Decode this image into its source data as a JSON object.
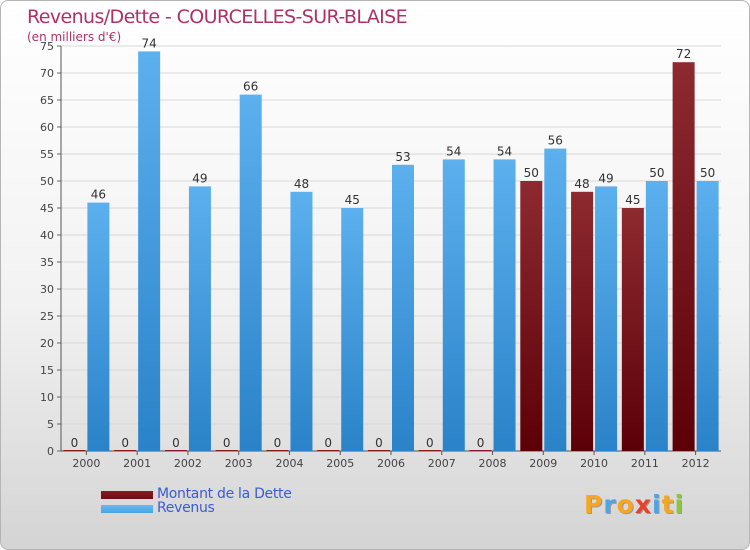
{
  "title": "Revenus/Dette - COURCELLES-SUR-BLAISE",
  "subtitle": "(en milliers d'€)",
  "colors": {
    "dette": "#7a1018",
    "revenus": "#4ba3e6",
    "title": "#b0306a",
    "legend_text": "#3c5bd6"
  },
  "legend": [
    {
      "label": "Montant de la Dette",
      "color": "#6b0d14"
    },
    {
      "label": "Revenus",
      "color": "#4ba3e6"
    }
  ],
  "logo": {
    "letters": [
      "P",
      "r",
      "o",
      "x",
      "i",
      "t",
      "i"
    ],
    "colors": [
      "#f5a623",
      "#4aa6e8",
      "#f5a623",
      "#e8402a",
      "#4aa6e8",
      "#f5a623",
      "#8cc63f"
    ]
  },
  "chart_data": {
    "type": "bar",
    "categories": [
      "2000",
      "2001",
      "2002",
      "2003",
      "2004",
      "2005",
      "2006",
      "2007",
      "2008",
      "2009",
      "2010",
      "2011",
      "2012"
    ],
    "series": [
      {
        "name": "Montant de la Dette",
        "values": [
          0,
          0,
          0,
          0,
          0,
          0,
          0,
          0,
          0,
          50,
          48,
          45,
          72
        ]
      },
      {
        "name": "Revenus",
        "values": [
          46,
          74,
          49,
          66,
          48,
          45,
          53,
          54,
          54,
          56,
          49,
          50,
          50
        ]
      }
    ],
    "ylim": [
      0,
      75
    ],
    "ytick_step": 5,
    "grid": true
  }
}
